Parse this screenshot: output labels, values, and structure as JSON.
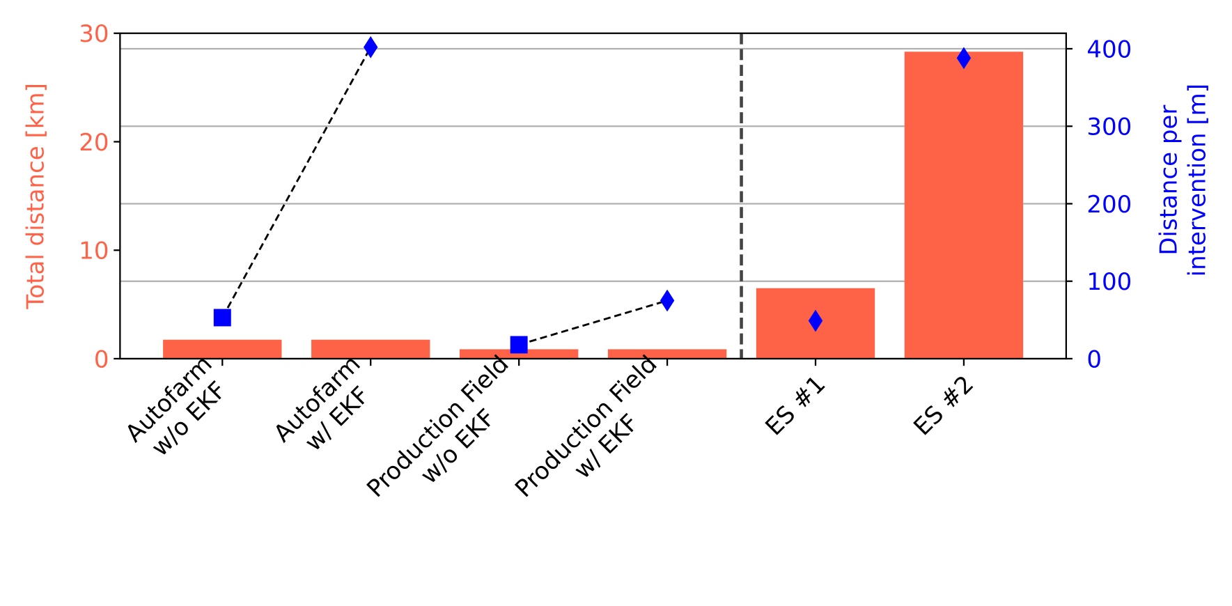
{
  "chart_data": {
    "type": "bar",
    "categories": [
      "Autofarm\nw/o EKF",
      "Autofarm\nw/ EKF",
      "Production Field\nw/o EKF",
      "Production Field\nw/ EKF",
      "ES #1",
      "ES #2"
    ],
    "values": [
      1.75,
      1.75,
      0.87,
      0.87,
      6.5,
      28.3
    ],
    "color": "#ff6347",
    "ylabel": "Total distance [km]",
    "ylim": [
      0,
      30
    ],
    "yticks": [
      0,
      10,
      20,
      30
    ],
    "ycolor": "#ff6347",
    "points": {
      "values": [
        53,
        402,
        18,
        75,
        49,
        388
      ],
      "markers": [
        "square",
        "diamond",
        "square",
        "diamond",
        "diamond",
        "diamond"
      ],
      "color": "#0000ff",
      "axis": "y2",
      "connect": [
        [
          0,
          1
        ],
        [
          2,
          3
        ]
      ]
    },
    "y2label": "Distance per\nintervention [m]",
    "y2lim": [
      0,
      420
    ],
    "y2ticks": [
      0,
      100,
      200,
      300,
      400
    ],
    "y2color": "#0000ff",
    "grid": "y2",
    "separator_after": 3
  }
}
